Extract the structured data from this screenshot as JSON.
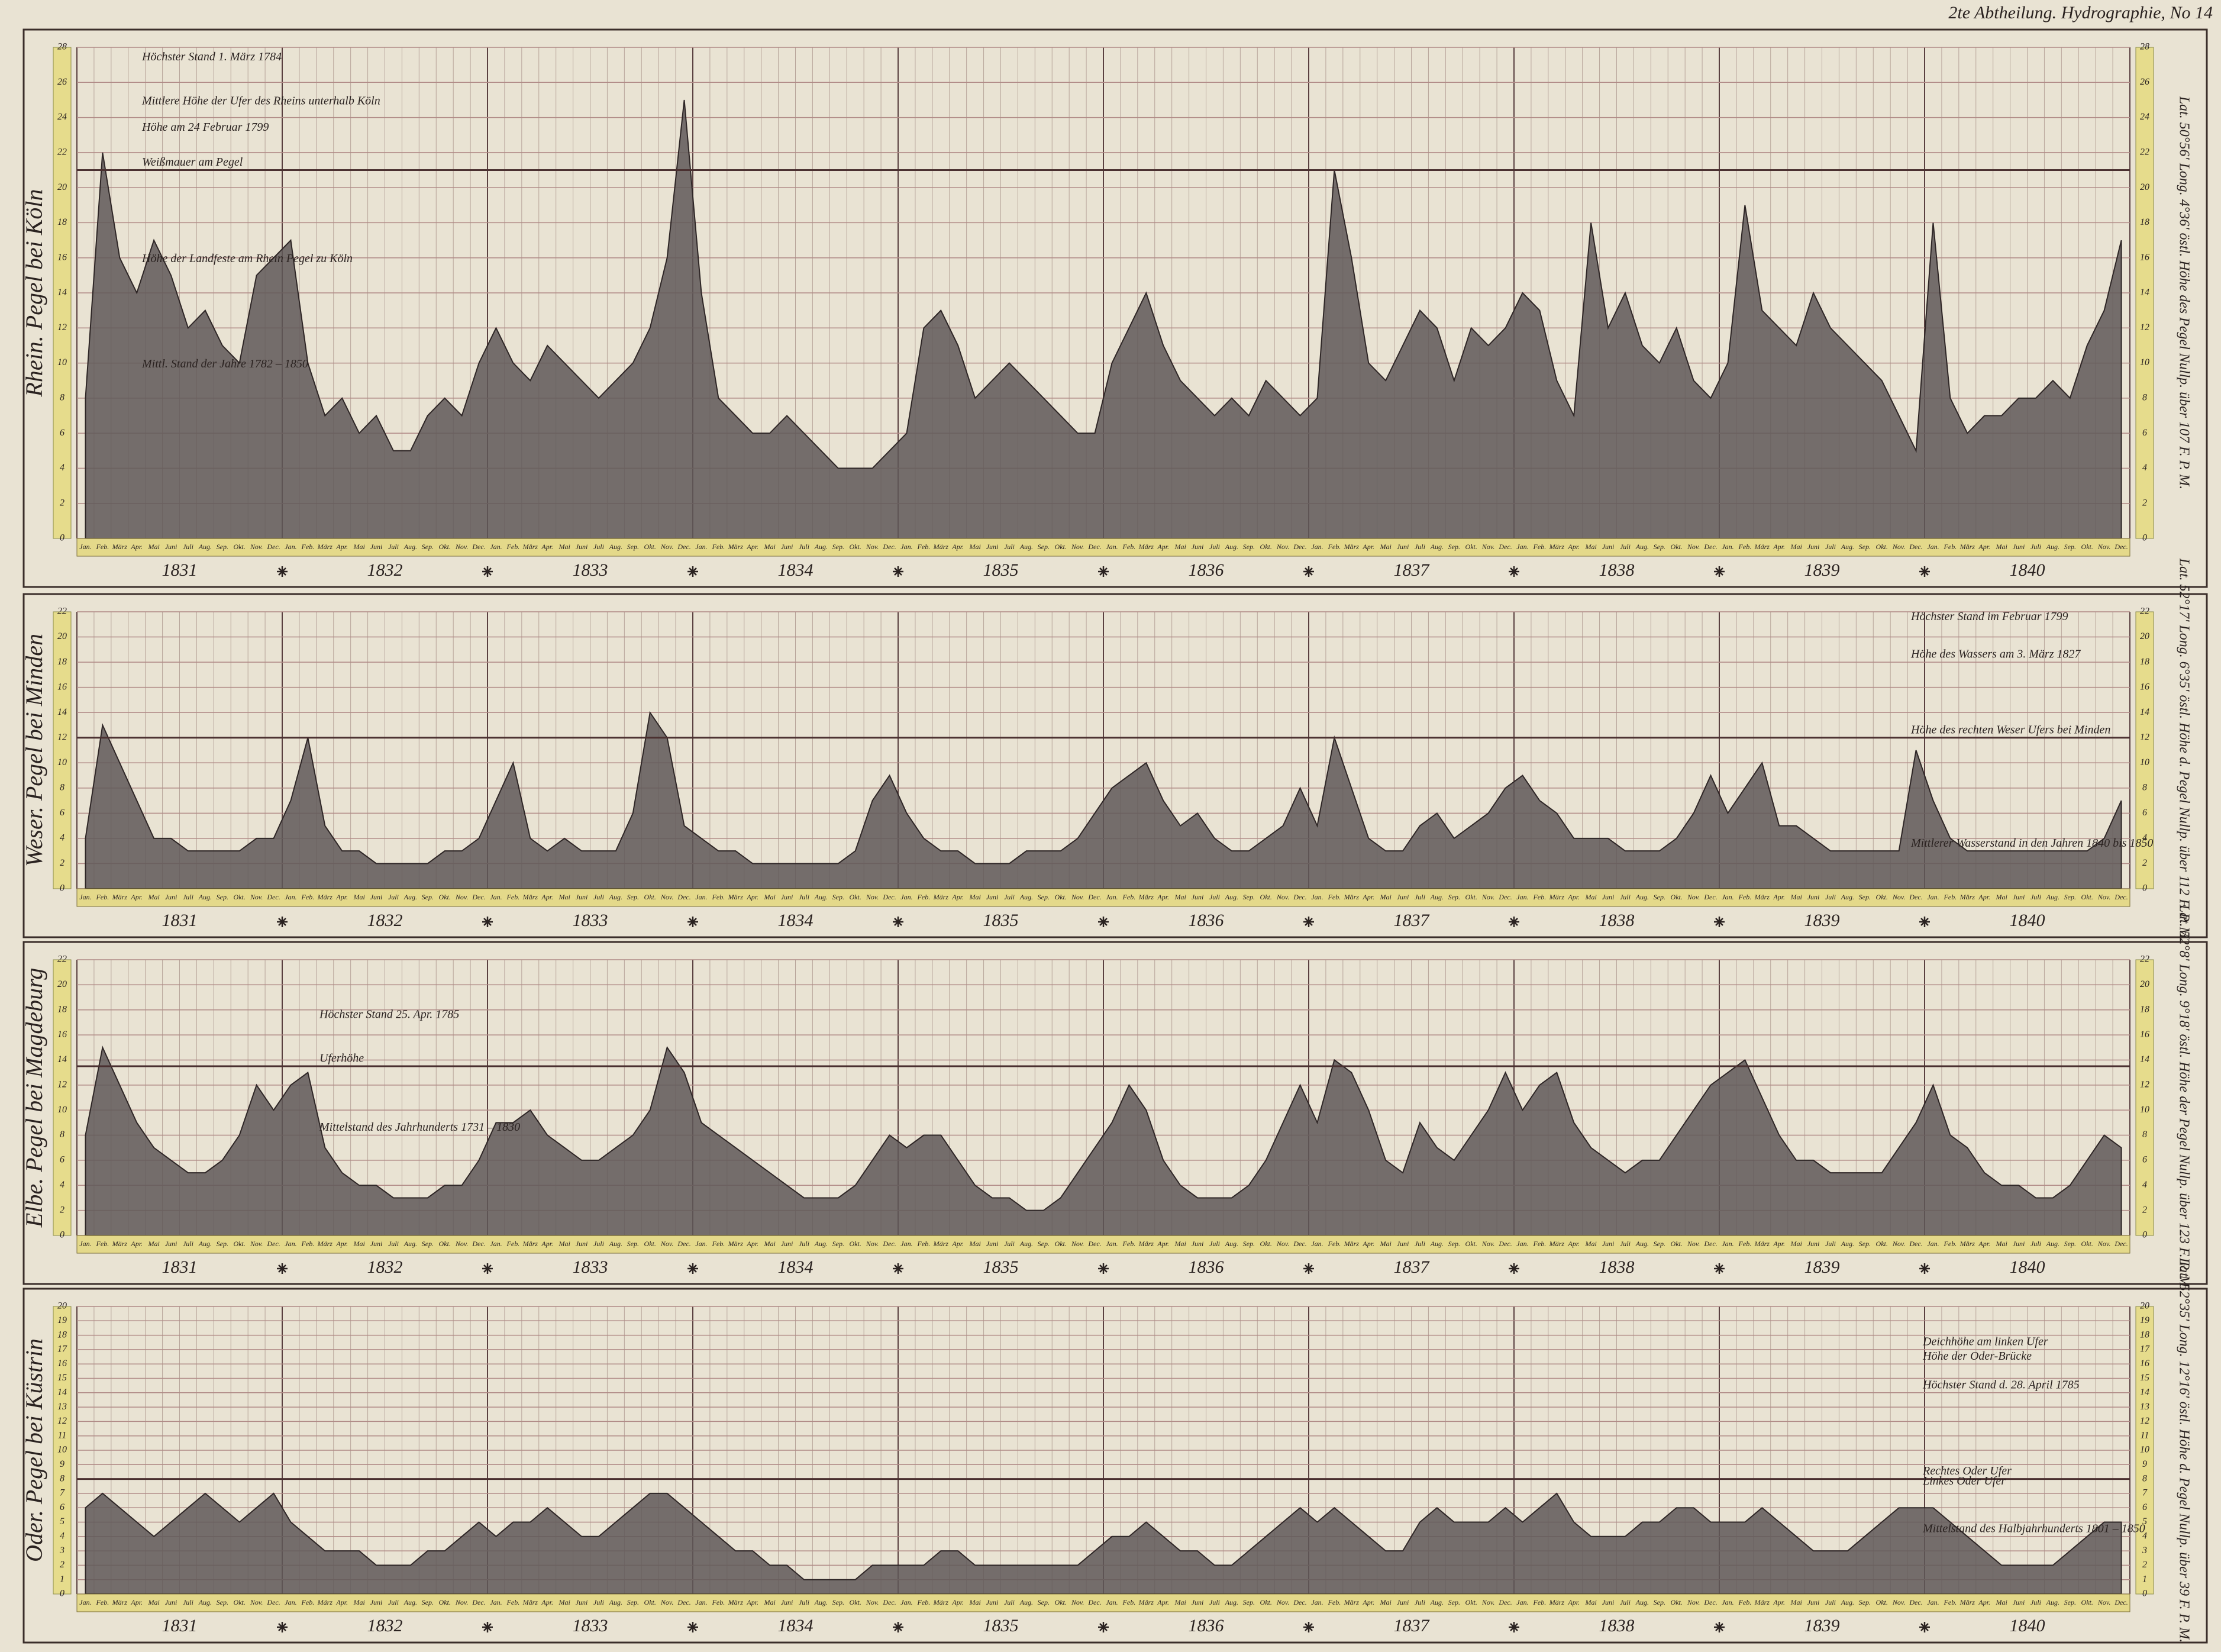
{
  "header": "2te Abtheilung. Hydrographie, No 14",
  "chart_data": [
    {
      "type": "area",
      "title": "Rhein. Pegel bei Köln",
      "subtitle": "Lat. 50°56' Long. 4°36' östl. Höhe des Pegel Nullp. über 107 F. P. M.",
      "color": "#5f5858",
      "ylim": [
        0,
        28
      ],
      "yticks": [
        0,
        2,
        4,
        6,
        8,
        10,
        12,
        14,
        16,
        18,
        20,
        22,
        24,
        26,
        28
      ],
      "years": [
        "1831",
        "1832",
        "1833",
        "1834",
        "1835",
        "1836",
        "1837",
        "1838",
        "1839",
        "1840"
      ],
      "categories": [
        "Jan.",
        "Feb.",
        "März",
        "Apr.",
        "Mai",
        "Juni",
        "Juli",
        "Aug.",
        "Sep.",
        "Okt.",
        "Nov.",
        "Dec.",
        "Jan.",
        "Feb.",
        "März",
        "Apr.",
        "Mai",
        "Juni",
        "Juli",
        "Aug.",
        "Sep.",
        "Okt.",
        "Nov.",
        "Dec.",
        "Jan.",
        "Feb.",
        "März",
        "Apr.",
        "Mai",
        "Juni",
        "Juli",
        "Aug.",
        "Sep.",
        "Okt.",
        "Nov.",
        "Dec.",
        "Jan.",
        "Feb.",
        "März",
        "Apr.",
        "Mai",
        "Juni",
        "Juli",
        "Aug.",
        "Sep.",
        "Okt.",
        "Nov.",
        "Dec.",
        "Jan.",
        "Feb.",
        "März",
        "Apr.",
        "Mai",
        "Juni",
        "Juli",
        "Aug.",
        "Sep.",
        "Okt.",
        "Nov.",
        "Dec.",
        "Jan.",
        "Feb.",
        "März",
        "Apr.",
        "Mai",
        "Juni",
        "Juli",
        "Aug.",
        "Sep.",
        "Okt.",
        "Nov.",
        "Dec.",
        "Jan.",
        "Feb.",
        "März",
        "Apr.",
        "Mai",
        "Juni",
        "Juli",
        "Aug.",
        "Sep.",
        "Okt.",
        "Nov.",
        "Dec.",
        "Jan.",
        "Feb.",
        "März",
        "Apr.",
        "Mai",
        "Juni",
        "Juli",
        "Aug.",
        "Sep.",
        "Okt.",
        "Nov.",
        "Dec.",
        "Jan.",
        "Feb.",
        "März",
        "Apr.",
        "Mai",
        "Juni",
        "Juli",
        "Aug.",
        "Sep.",
        "Okt.",
        "Nov.",
        "Dec.",
        "Jan.",
        "Feb.",
        "März",
        "Apr.",
        "Mai",
        "Juni",
        "Juli",
        "Aug.",
        "Sep.",
        "Okt.",
        "Nov.",
        "Dec."
      ],
      "values": [
        8,
        22,
        16,
        14,
        17,
        15,
        12,
        13,
        11,
        10,
        15,
        16,
        17,
        10,
        7,
        8,
        6,
        7,
        5,
        5,
        7,
        8,
        7,
        10,
        12,
        10,
        9,
        11,
        10,
        9,
        8,
        9,
        10,
        12,
        16,
        25,
        14,
        8,
        7,
        6,
        6,
        7,
        6,
        5,
        4,
        4,
        4,
        5,
        6,
        12,
        13,
        11,
        8,
        9,
        10,
        9,
        8,
        7,
        6,
        6,
        10,
        12,
        14,
        11,
        9,
        8,
        7,
        8,
        7,
        9,
        8,
        7,
        8,
        21,
        16,
        10,
        9,
        11,
        13,
        12,
        9,
        12,
        11,
        12,
        14,
        13,
        9,
        7,
        18,
        12,
        14,
        11,
        10,
        12,
        9,
        8,
        10,
        19,
        13,
        12,
        11,
        14,
        12,
        11,
        10,
        9,
        7,
        5,
        18,
        8,
        6,
        7,
        7,
        8,
        8,
        9,
        8,
        11,
        13,
        17
      ],
      "annotations": [
        {
          "text": "Höchster Stand 1. März 1784",
          "value": 27,
          "line": false
        },
        {
          "text": "Mittlere Höhe der Ufer des Rheins unterhalb Köln",
          "value": 24.5,
          "line": false
        },
        {
          "text": "Höhe am 24 Februar 1799",
          "value": 23,
          "line": false
        },
        {
          "text": "Weißmauer am Pegel",
          "value": 21,
          "line": true
        },
        {
          "text": "Höhe der Landfeste am Rhein Pegel zu Köln",
          "value": 15.5,
          "line": false
        },
        {
          "text": "Mittl. Stand der Jahre 1782 – 1850",
          "value": 9.5,
          "line": false
        }
      ]
    },
    {
      "type": "area",
      "title": "Weser. Pegel bei Minden",
      "subtitle": "Lat. 52°17' Long. 6°35' östl. Höhe d. Pegel Nullp. über 112 F. P. M.",
      "color": "#5f5858",
      "ylim": [
        0,
        22
      ],
      "yticks": [
        0,
        2,
        4,
        6,
        8,
        10,
        12,
        14,
        16,
        18,
        20,
        22
      ],
      "years": [
        "1831",
        "1832",
        "1833",
        "1834",
        "1835",
        "1836",
        "1837",
        "1838",
        "1839",
        "1840"
      ],
      "categories": [
        "Jan.",
        "Feb.",
        "März",
        "Apr.",
        "Mai",
        "Juni",
        "Juli",
        "Aug.",
        "Sep.",
        "Okt.",
        "Nov.",
        "Dec.",
        "Jan.",
        "Feb.",
        "März",
        "Apr.",
        "Mai",
        "Juni",
        "Juli",
        "Aug.",
        "Sep.",
        "Okt.",
        "Nov.",
        "Dec.",
        "Jan.",
        "Feb.",
        "März",
        "Apr.",
        "Mai",
        "Juni",
        "Juli",
        "Aug.",
        "Sep.",
        "Okt.",
        "Nov.",
        "Dec.",
        "Jan.",
        "Feb.",
        "März",
        "Apr.",
        "Mai",
        "Juni",
        "Juli",
        "Aug.",
        "Sep.",
        "Okt.",
        "Nov.",
        "Dec.",
        "Jan.",
        "Feb.",
        "März",
        "Apr.",
        "Mai",
        "Juni",
        "Juli",
        "Aug.",
        "Sep.",
        "Okt.",
        "Nov.",
        "Dec.",
        "Jan.",
        "Feb.",
        "März",
        "Apr.",
        "Mai",
        "Juni",
        "Juli",
        "Aug.",
        "Sep.",
        "Okt.",
        "Nov.",
        "Dec.",
        "Jan.",
        "Feb.",
        "März",
        "Apr.",
        "Mai",
        "Juni",
        "Juli",
        "Aug.",
        "Sep.",
        "Okt.",
        "Nov.",
        "Dec.",
        "Jan.",
        "Feb.",
        "März",
        "Apr.",
        "Mai",
        "Juni",
        "Juli",
        "Aug.",
        "Sep.",
        "Okt.",
        "Nov.",
        "Dec.",
        "Jan.",
        "Feb.",
        "März",
        "Apr.",
        "Mai",
        "Juni",
        "Juli",
        "Aug.",
        "Sep.",
        "Okt.",
        "Nov.",
        "Dec.",
        "Jan.",
        "Feb.",
        "März",
        "Apr.",
        "Mai",
        "Juni",
        "Juli",
        "Aug.",
        "Sep.",
        "Okt.",
        "Nov.",
        "Dec."
      ],
      "values": [
        4,
        13,
        10,
        7,
        4,
        4,
        3,
        3,
        3,
        3,
        4,
        4,
        7,
        12,
        5,
        3,
        3,
        2,
        2,
        2,
        2,
        3,
        3,
        4,
        7,
        10,
        4,
        3,
        4,
        3,
        3,
        3,
        6,
        14,
        12,
        5,
        4,
        3,
        3,
        2,
        2,
        2,
        2,
        2,
        2,
        3,
        7,
        9,
        6,
        4,
        3,
        3,
        2,
        2,
        2,
        3,
        3,
        3,
        4,
        6,
        8,
        9,
        10,
        7,
        5,
        6,
        4,
        3,
        3,
        4,
        5,
        8,
        5,
        12,
        8,
        4,
        3,
        3,
        5,
        6,
        4,
        5,
        6,
        8,
        9,
        7,
        6,
        4,
        4,
        4,
        3,
        3,
        3,
        4,
        6,
        9,
        6,
        8,
        10,
        5,
        5,
        4,
        3,
        3,
        3,
        3,
        3,
        11,
        7,
        4,
        3,
        3,
        3,
        3,
        3,
        3,
        3,
        3,
        4,
        7
      ],
      "annotations": [
        {
          "text": "Höchster Stand im Februar 1799",
          "value": 21,
          "line": false
        },
        {
          "text": "Höhe des Wassers am 3. März 1827",
          "value": 18,
          "line": false
        },
        {
          "text": "Höhe des rechten Weser Ufers bei Minden",
          "value": 12,
          "line": true
        },
        {
          "text": "Mittlerer Wasserstand in den Jahren 1840 bis 1850",
          "value": 3,
          "line": false
        }
      ]
    },
    {
      "type": "area",
      "title": "Elbe. Pegel bei Magdeburg",
      "subtitle": "Lat. 52°8' Long. 9°18' östl. Höhe der Pegel Nullp. über 123 F. P. M.",
      "color": "#5f5858",
      "ylim": [
        0,
        22
      ],
      "yticks": [
        0,
        2,
        4,
        6,
        8,
        10,
        12,
        14,
        16,
        18,
        20,
        22
      ],
      "years": [
        "1831",
        "1832",
        "1833",
        "1834",
        "1835",
        "1836",
        "1837",
        "1838",
        "1839",
        "1840"
      ],
      "categories": [
        "Jan.",
        "Feb.",
        "März",
        "Apr.",
        "Mai",
        "Juni",
        "Juli",
        "Aug.",
        "Sep.",
        "Okt.",
        "Nov.",
        "Dec.",
        "Jan.",
        "Feb.",
        "März",
        "Apr.",
        "Mai",
        "Juni",
        "Juli",
        "Aug.",
        "Sep.",
        "Okt.",
        "Nov.",
        "Dec.",
        "Jan.",
        "Feb.",
        "März",
        "Apr.",
        "Mai",
        "Juni",
        "Juli",
        "Aug.",
        "Sep.",
        "Okt.",
        "Nov.",
        "Dec.",
        "Jan.",
        "Feb.",
        "März",
        "Apr.",
        "Mai",
        "Juni",
        "Juli",
        "Aug.",
        "Sep.",
        "Okt.",
        "Nov.",
        "Dec.",
        "Jan.",
        "Feb.",
        "März",
        "Apr.",
        "Mai",
        "Juni",
        "Juli",
        "Aug.",
        "Sep.",
        "Okt.",
        "Nov.",
        "Dec.",
        "Jan.",
        "Feb.",
        "März",
        "Apr.",
        "Mai",
        "Juni",
        "Juli",
        "Aug.",
        "Sep.",
        "Okt.",
        "Nov.",
        "Dec.",
        "Jan.",
        "Feb.",
        "März",
        "Apr.",
        "Mai",
        "Juni",
        "Juli",
        "Aug.",
        "Sep.",
        "Okt.",
        "Nov.",
        "Dec.",
        "Jan.",
        "Feb.",
        "März",
        "Apr.",
        "Mai",
        "Juni",
        "Juli",
        "Aug.",
        "Sep.",
        "Okt.",
        "Nov.",
        "Dec.",
        "Jan.",
        "Feb.",
        "März",
        "Apr.",
        "Mai",
        "Juni",
        "Juli",
        "Aug.",
        "Sep.",
        "Okt.",
        "Nov.",
        "Dec.",
        "Jan.",
        "Feb.",
        "März",
        "Apr.",
        "Mai",
        "Juni",
        "Juli",
        "Aug.",
        "Sep.",
        "Okt.",
        "Nov.",
        "Dec."
      ],
      "values": [
        8,
        15,
        12,
        9,
        7,
        6,
        5,
        5,
        6,
        8,
        12,
        10,
        12,
        13,
        7,
        5,
        4,
        4,
        3,
        3,
        3,
        4,
        4,
        6,
        9,
        9,
        10,
        8,
        7,
        6,
        6,
        7,
        8,
        10,
        15,
        13,
        9,
        8,
        7,
        6,
        5,
        4,
        3,
        3,
        3,
        4,
        6,
        8,
        7,
        8,
        8,
        6,
        4,
        3,
        3,
        2,
        2,
        3,
        5,
        7,
        9,
        12,
        10,
        6,
        4,
        3,
        3,
        3,
        4,
        6,
        9,
        12,
        9,
        14,
        13,
        10,
        6,
        5,
        9,
        7,
        6,
        8,
        10,
        13,
        10,
        12,
        13,
        9,
        7,
        6,
        5,
        6,
        6,
        8,
        10,
        12,
        13,
        14,
        11,
        8,
        6,
        6,
        5,
        5,
        5,
        5,
        7,
        9,
        12,
        8,
        7,
        5,
        4,
        4,
        3,
        3,
        4,
        6,
        8,
        7
      ],
      "annotations": [
        {
          "text": "Höchster Stand 25. Apr. 1785",
          "value": 17,
          "line": false
        },
        {
          "text": "Uferhöhe",
          "value": 13.5,
          "line": true
        },
        {
          "text": "Mittelstand des Jahrhunderts 1731 – 1830",
          "value": 8,
          "line": false
        }
      ]
    },
    {
      "type": "area",
      "title": "Oder. Pegel bei Küstrin",
      "subtitle": "Lat. 52°35' Long. 12°16' östl. Höhe d. Pegel Nullp. über 39 F. P. M.",
      "color": "#5f5858",
      "ylim": [
        0,
        20
      ],
      "yticks": [
        0,
        1,
        2,
        3,
        4,
        5,
        6,
        7,
        8,
        9,
        10,
        11,
        12,
        13,
        14,
        15,
        16,
        17,
        18,
        19,
        20
      ],
      "years": [
        "1831",
        "1832",
        "1833",
        "1834",
        "1835",
        "1836",
        "1837",
        "1838",
        "1839",
        "1840"
      ],
      "categories": [
        "Jan.",
        "Feb.",
        "März",
        "Apr.",
        "Mai",
        "Juni",
        "Juli",
        "Aug.",
        "Sep.",
        "Okt.",
        "Nov.",
        "Dec.",
        "Jan.",
        "Feb.",
        "März",
        "Apr.",
        "Mai",
        "Juni",
        "Juli",
        "Aug.",
        "Sep.",
        "Okt.",
        "Nov.",
        "Dec.",
        "Jan.",
        "Feb.",
        "März",
        "Apr.",
        "Mai",
        "Juni",
        "Juli",
        "Aug.",
        "Sep.",
        "Okt.",
        "Nov.",
        "Dec.",
        "Jan.",
        "Feb.",
        "März",
        "Apr.",
        "Mai",
        "Juni",
        "Juli",
        "Aug.",
        "Sep.",
        "Okt.",
        "Nov.",
        "Dec.",
        "Jan.",
        "Feb.",
        "März",
        "Apr.",
        "Mai",
        "Juni",
        "Juli",
        "Aug.",
        "Sep.",
        "Okt.",
        "Nov.",
        "Dec.",
        "Jan.",
        "Feb.",
        "März",
        "Apr.",
        "Mai",
        "Juni",
        "Juli",
        "Aug.",
        "Sep.",
        "Okt.",
        "Nov.",
        "Dec.",
        "Jan.",
        "Feb.",
        "März",
        "Apr.",
        "Mai",
        "Juni",
        "Juli",
        "Aug.",
        "Sep.",
        "Okt.",
        "Nov.",
        "Dec.",
        "Jan.",
        "Feb.",
        "März",
        "Apr.",
        "Mai",
        "Juni",
        "Juli",
        "Aug.",
        "Sep.",
        "Okt.",
        "Nov.",
        "Dec.",
        "Jan.",
        "Feb.",
        "März",
        "Apr.",
        "Mai",
        "Juni",
        "Juli",
        "Aug.",
        "Sep.",
        "Okt.",
        "Nov.",
        "Dec.",
        "Jan.",
        "Feb.",
        "März",
        "Apr.",
        "Mai",
        "Juni",
        "Juli",
        "Aug.",
        "Sep.",
        "Okt.",
        "Nov.",
        "Dec."
      ],
      "values": [
        6,
        7,
        6,
        5,
        4,
        5,
        6,
        7,
        6,
        5,
        6,
        7,
        5,
        4,
        3,
        3,
        3,
        2,
        2,
        2,
        3,
        3,
        4,
        5,
        4,
        5,
        5,
        6,
        5,
        4,
        4,
        5,
        6,
        7,
        7,
        6,
        5,
        4,
        3,
        3,
        2,
        2,
        1,
        1,
        1,
        1,
        2,
        2,
        2,
        2,
        3,
        3,
        2,
        2,
        2,
        2,
        2,
        2,
        2,
        3,
        4,
        4,
        5,
        4,
        3,
        3,
        2,
        2,
        3,
        4,
        5,
        6,
        5,
        6,
        5,
        4,
        3,
        3,
        5,
        6,
        5,
        5,
        5,
        6,
        5,
        6,
        7,
        5,
        4,
        4,
        4,
        5,
        5,
        6,
        6,
        5,
        5,
        5,
        6,
        5,
        4,
        3,
        3,
        3,
        4,
        5,
        6,
        6,
        6,
        5,
        4,
        3,
        2,
        2,
        2,
        2,
        3,
        4,
        5,
        5
      ],
      "annotations": [
        {
          "text": "Deichhöhe am linken Ufer",
          "value": 17,
          "line": false
        },
        {
          "text": "Höhe der Oder-Brücke",
          "value": 16,
          "line": false
        },
        {
          "text": "Höchster Stand d. 28. April 1785",
          "value": 14,
          "line": false
        },
        {
          "text": "Rechtes Oder Ufer",
          "value": 8,
          "line": true
        },
        {
          "text": "Linkes Oder Ufer",
          "value": 7.3,
          "line": false
        },
        {
          "text": "Mittelstand des Halbjahrhunderts 1801 – 1850",
          "value": 4,
          "line": false
        }
      ]
    }
  ]
}
